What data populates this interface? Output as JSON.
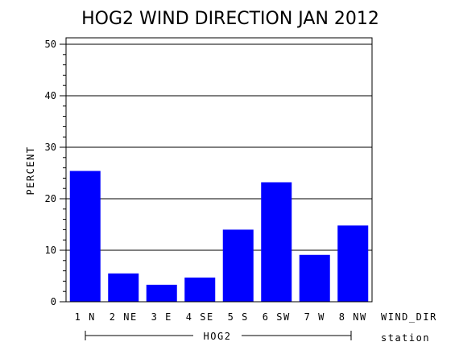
{
  "chart_data": {
    "type": "bar",
    "title": "HOG2 WIND DIRECTION JAN 2012",
    "ylabel": "PERCENT",
    "xlabel": "WIND_DIR",
    "group_axis_label": "station",
    "group_label": "HOG2",
    "categories": [
      "1 N",
      "2 NE",
      "3 E",
      "4 SE",
      "5 S",
      "6 SW",
      "7 W",
      "8 NW"
    ],
    "values": [
      25.4,
      5.5,
      3.3,
      4.7,
      14.0,
      23.2,
      9.1,
      14.8
    ],
    "ylim": [
      0,
      50
    ],
    "yticks": [
      0,
      10,
      20,
      30,
      40,
      50
    ],
    "grid": true,
    "bar_color": "#0000ff"
  }
}
